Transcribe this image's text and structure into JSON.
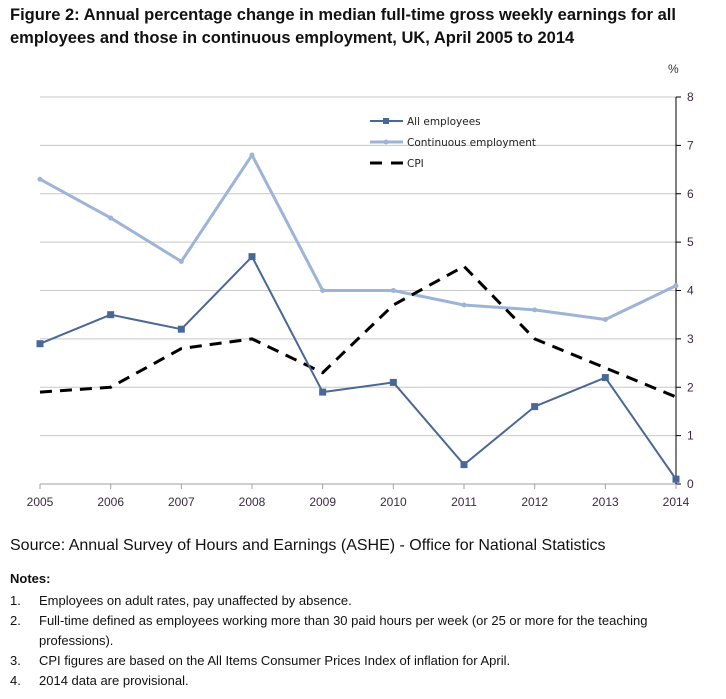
{
  "title": "Figure 2: Annual percentage change in median full-time gross weekly earnings for all employees and those in continuous employment, UK, April 2005 to 2014",
  "source": "Source: Annual Survey of Hours and Earnings (ASHE) - Office for National Statistics",
  "notes": {
    "title": "Notes:",
    "items": [
      {
        "num": "1.",
        "text": "Employees on adult rates, pay unaffected by absence."
      },
      {
        "num": "2.",
        "text": "Full-time defined as employees working more than 30 paid hours per week (or 25 or more for the teaching professions)."
      },
      {
        "num": "3.",
        "text": "CPI figures are based on the All Items Consumer Prices Index of inflation for April."
      },
      {
        "num": "4.",
        "text": "2014 data are provisional."
      }
    ]
  },
  "chart_data": {
    "type": "line",
    "title": "Figure 2: Annual percentage change in median full-time gross weekly earnings for all employees and those in continuous employment, UK, April 2005 to 2014",
    "xlabel": "",
    "ylabel": "%",
    "x": [
      "2005",
      "2006",
      "2007",
      "2008",
      "2009",
      "2010",
      "2011",
      "2012",
      "2013",
      "2014"
    ],
    "ylim": [
      0,
      8
    ],
    "yticks": [
      0,
      1,
      2,
      3,
      4,
      5,
      6,
      7,
      8
    ],
    "y_axis_side": "right",
    "grid": true,
    "legend_position": "top-center",
    "series": [
      {
        "name": "All employees",
        "color": "#4a6895",
        "style": "solid",
        "marker": "square",
        "values": [
          2.9,
          3.5,
          3.2,
          4.7,
          1.9,
          2.1,
          0.4,
          1.6,
          2.2,
          0.1
        ]
      },
      {
        "name": "Continuous employment",
        "color": "#9db4d6",
        "style": "solid",
        "marker": "dot",
        "values": [
          6.3,
          5.5,
          4.6,
          6.8,
          4.0,
          4.0,
          3.7,
          3.6,
          3.4,
          4.1
        ]
      },
      {
        "name": "CPI",
        "color": "#000000",
        "style": "dashed",
        "marker": "none",
        "values": [
          1.9,
          2.0,
          2.8,
          3.0,
          2.3,
          3.7,
          4.5,
          3.0,
          2.4,
          1.8
        ]
      }
    ]
  }
}
